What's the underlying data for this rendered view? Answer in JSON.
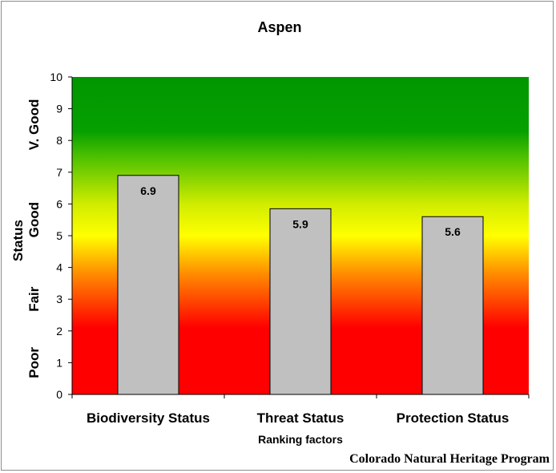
{
  "chart_data": {
    "type": "bar",
    "title": "Aspen",
    "xlabel": "Ranking factors",
    "ylabel": "Status",
    "categories": [
      "Biodiversity Status",
      "Threat Status",
      "Protection Status"
    ],
    "values": [
      6.9,
      5.85,
      5.6
    ],
    "value_labels": [
      "6.9",
      "5.9",
      "5.6"
    ],
    "ylim": [
      0,
      10
    ],
    "yticks": [
      "0",
      "1",
      "2",
      "3",
      "4",
      "5",
      "6",
      "7",
      "8",
      "9",
      "10"
    ],
    "rating_bands": [
      {
        "label": "Poor",
        "from": 0,
        "to": 2
      },
      {
        "label": "Fair",
        "from": 2,
        "to": 4
      },
      {
        "label": "Good",
        "from": 4,
        "to": 7
      },
      {
        "label": "V. Good",
        "from": 7,
        "to": 10
      }
    ],
    "background_gradient": [
      {
        "value": 0,
        "color": "#ff0000"
      },
      {
        "value": 2.1,
        "color": "#ff0000"
      },
      {
        "value": 3.8,
        "color": "#ff8c00"
      },
      {
        "value": 5.0,
        "color": "#ffff00"
      },
      {
        "value": 6.0,
        "color": "#d0ec00"
      },
      {
        "value": 7.5,
        "color": "#4cc000"
      },
      {
        "value": 8.3,
        "color": "#06a000"
      },
      {
        "value": 10,
        "color": "#009600"
      }
    ],
    "bar_color": "#c0c0c0",
    "grid": false,
    "legend": "none"
  },
  "credit": "Colorado Natural Heritage Program"
}
